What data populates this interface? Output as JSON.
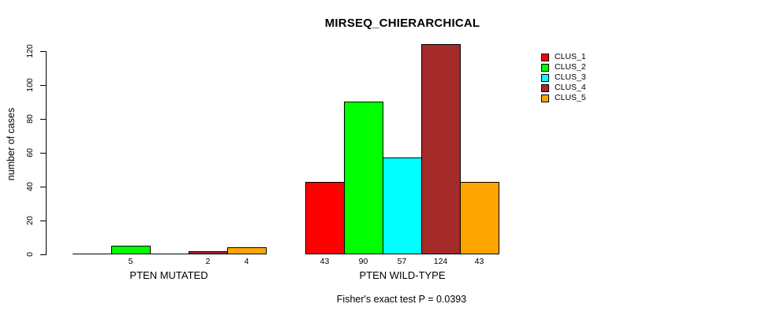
{
  "chart_data": {
    "type": "bar",
    "title": "MIRSEQ_CHIERARCHICAL",
    "xlabel": "",
    "ylabel": "number of cases",
    "categories": [
      "PTEN MUTATED",
      "PTEN WILD-TYPE"
    ],
    "series": [
      {
        "name": "CLUS_1",
        "color": "#ff0000",
        "values": [
          0,
          43
        ]
      },
      {
        "name": "CLUS_2",
        "color": "#00ff00",
        "values": [
          5,
          90
        ]
      },
      {
        "name": "CLUS_3",
        "color": "#00ffff",
        "values": [
          0,
          57
        ]
      },
      {
        "name": "CLUS_4",
        "color": "#a52a2a",
        "values": [
          2,
          124
        ]
      },
      {
        "name": "CLUS_5",
        "color": "#ffa500",
        "values": [
          4,
          43
        ]
      }
    ],
    "bar_labels": [
      [
        null,
        5,
        null,
        2,
        4
      ],
      [
        43,
        90,
        57,
        124,
        43
      ]
    ],
    "yticks": [
      0,
      20,
      40,
      60,
      80,
      100,
      120
    ],
    "ylim": [
      0,
      129
    ],
    "grid": false,
    "legend_position": "right",
    "legend_entries": [
      "CLUS_1",
      "CLUS_2",
      "CLUS_3",
      "CLUS_4",
      "CLUS_5"
    ],
    "annotation": "Fisher's exact test P = 0.0393"
  },
  "colors": {
    "axis": "#000000",
    "bar_border": "#000000",
    "background": "#ffffff"
  }
}
